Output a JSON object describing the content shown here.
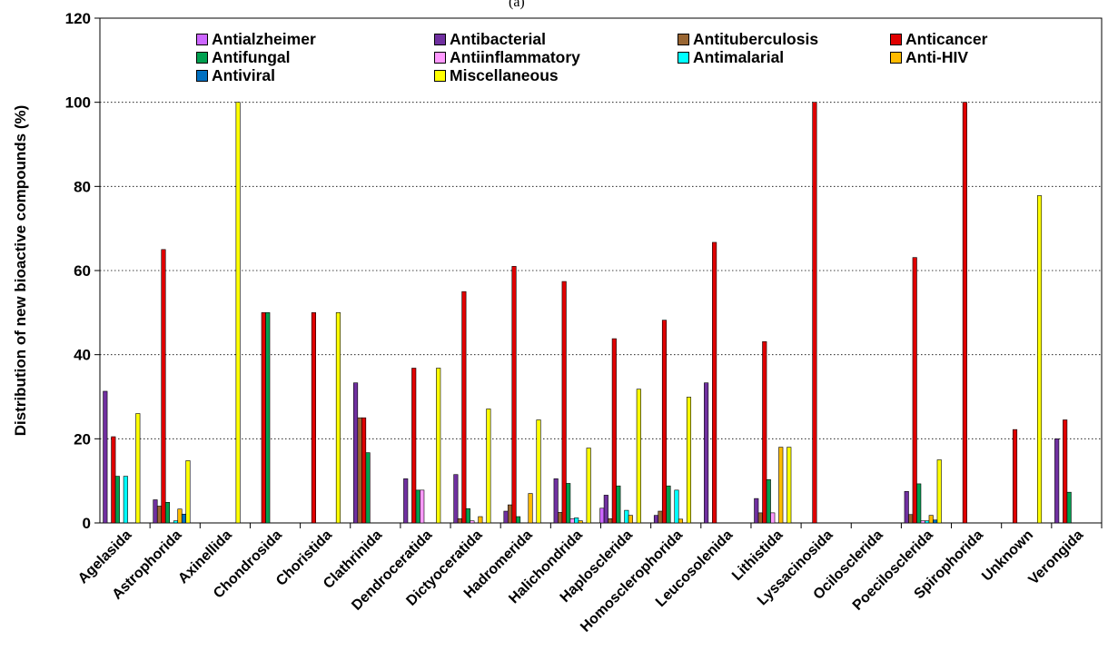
{
  "panel_label": "(a)",
  "chart_data": {
    "type": "bar",
    "title": "",
    "xlabel": "",
    "ylabel": "Distribution of new bioactive compounds  (%)",
    "ylim": [
      0,
      120
    ],
    "yticks": [
      0,
      20,
      40,
      60,
      80,
      100,
      120
    ],
    "grid": "horizontal dotted",
    "legend_position": "top",
    "categories": [
      "Agelasida",
      "Astrophorida",
      "Axinellida",
      "Chondrosida",
      "Choristida",
      "Clathrinida",
      "Dendroceratida",
      "Dictyoceratida",
      "Hadromerida",
      "Halichondrida",
      "Haplosclerida",
      "Homosclerophorida",
      "Leucosolenida",
      "Lithistida",
      "Lyssacinosida",
      "Ocilosclerida",
      "Poecilosclerida",
      "Spirophorida",
      "Unknown",
      "Verongida"
    ],
    "series": [
      {
        "name": "Antialzheimer",
        "color": "#cc66ff",
        "values": [
          0,
          0,
          0,
          0,
          0,
          0,
          0,
          0,
          0,
          0,
          3.5,
          0,
          0,
          0,
          0,
          0,
          0,
          0,
          0,
          0
        ]
      },
      {
        "name": "Antibacterial",
        "color": "#7030a0",
        "values": [
          31.3,
          5.5,
          0,
          0,
          0,
          33.3,
          10.5,
          11.5,
          2.8,
          10.5,
          6.6,
          1.8,
          33.3,
          5.8,
          0,
          0,
          7.5,
          0,
          0,
          20
        ]
      },
      {
        "name": "Antituberculosis",
        "color": "#996633",
        "values": [
          0,
          4,
          0,
          0,
          0,
          25,
          0,
          1,
          4.3,
          2.5,
          1,
          2.8,
          0,
          2.4,
          0,
          0,
          2,
          0,
          0,
          0
        ]
      },
      {
        "name": "Anticancer",
        "color": "#e00000",
        "values": [
          20.5,
          65,
          0,
          50,
          50,
          25,
          36.8,
          55,
          61,
          57.4,
          43.8,
          48.2,
          66.7,
          43.1,
          100,
          0,
          63.1,
          100,
          22.2,
          24.5
        ]
      },
      {
        "name": "Antifungal",
        "color": "#00a050",
        "values": [
          11.1,
          4.9,
          0,
          50,
          0,
          16.7,
          7.8,
          3.4,
          1.5,
          9.4,
          8.8,
          8.8,
          0,
          10.3,
          0,
          0,
          9.3,
          0,
          0,
          7.3
        ]
      },
      {
        "name": "Antiinflammatory",
        "color": "#ff99ff",
        "values": [
          0,
          0,
          0,
          0,
          0,
          0,
          7.8,
          0.5,
          0,
          1,
          0,
          0,
          0,
          2.4,
          0,
          0,
          0.5,
          0,
          0,
          0
        ]
      },
      {
        "name": "Antimalarial",
        "color": "#00ffff",
        "values": [
          11.1,
          0.5,
          0,
          0,
          0,
          0,
          0,
          0,
          0,
          1.2,
          3,
          7.8,
          0,
          0,
          0,
          0,
          0.5,
          0,
          0,
          0
        ]
      },
      {
        "name": "Anti-HIV",
        "color": "#ffbb00",
        "values": [
          0,
          3.3,
          0,
          0,
          0,
          0,
          0,
          1.5,
          7,
          0.5,
          1.8,
          0.9,
          0,
          18,
          0,
          0,
          1.8,
          0,
          0,
          0
        ]
      },
      {
        "name": "Antiviral",
        "color": "#0070c0",
        "values": [
          0,
          2.1,
          0,
          0,
          0,
          0,
          0,
          0,
          0,
          0,
          0,
          0,
          0,
          0,
          0,
          0,
          0.7,
          0,
          0,
          0
        ]
      },
      {
        "name": "Miscellaneous",
        "color": "#ffff00",
        "values": [
          26,
          14.8,
          100,
          0,
          50,
          0,
          36.8,
          27.1,
          24.5,
          17.8,
          31.8,
          29.9,
          0,
          18,
          0,
          0,
          15,
          0,
          77.8,
          0
        ]
      }
    ]
  }
}
